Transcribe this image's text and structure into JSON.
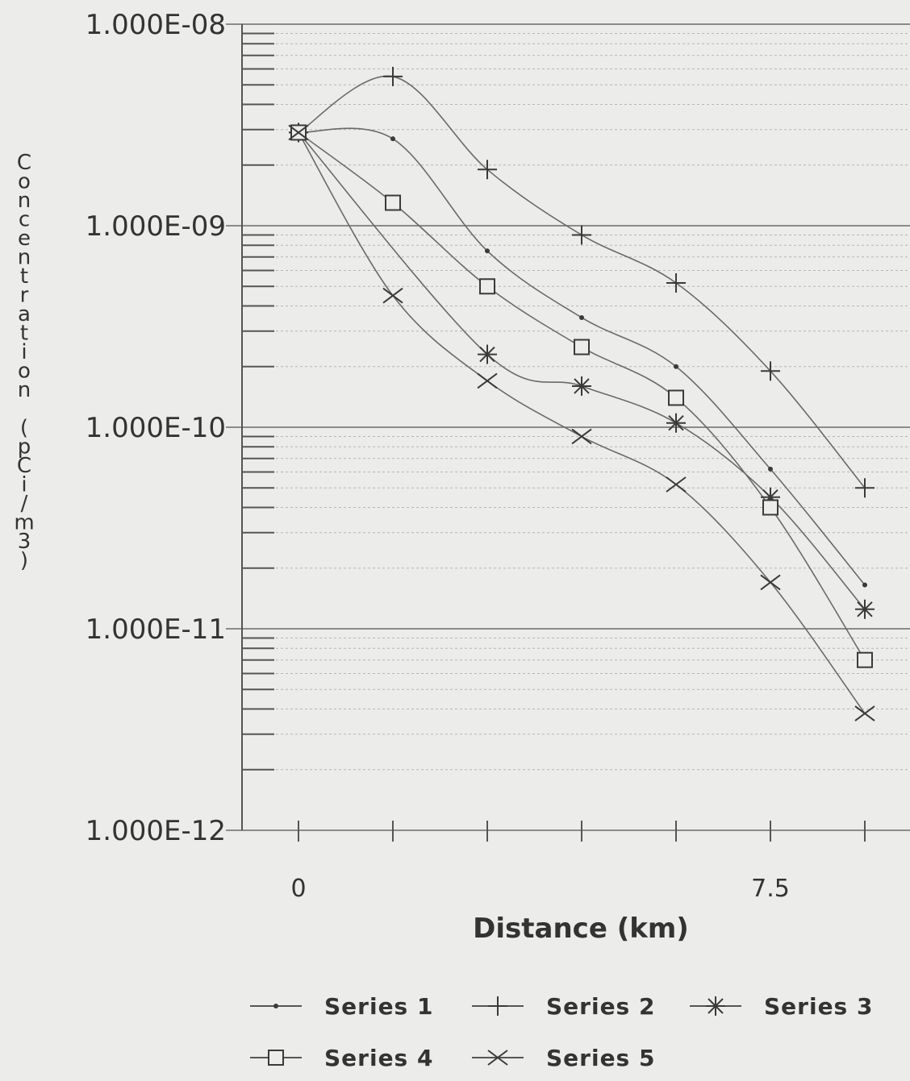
{
  "chart_data": {
    "type": "line",
    "title": "",
    "xlabel": "Distance (km)",
    "ylabel": "Concentration (pCi/m3)",
    "xlim": [
      0,
      9
    ],
    "ylim": [
      1e-12,
      1e-08
    ],
    "yscale": "log",
    "grid": true,
    "x_tick_labels": [
      {
        "value": 0,
        "label": "0"
      },
      {
        "value": 7.5,
        "label": "7.5"
      }
    ],
    "y_tick_labels": [
      {
        "value": 1e-08,
        "label": "1.000E-08"
      },
      {
        "value": 1e-09,
        "label": "1.000E-09"
      },
      {
        "value": 1e-10,
        "label": "1.000E-10"
      },
      {
        "value": 1e-11,
        "label": "1.000E-11"
      },
      {
        "value": 1e-12,
        "label": "1.000E-12"
      }
    ],
    "legend_position": "bottom",
    "x": [
      0,
      1.5,
      3,
      4.5,
      6,
      7.5,
      9
    ],
    "series": [
      {
        "name": "Series 1",
        "marker": "dot",
        "values": [
          2.9e-09,
          2.7e-09,
          7.5e-10,
          3.5e-10,
          2e-10,
          6.2e-11,
          1.65e-11
        ]
      },
      {
        "name": "Series 2",
        "marker": "plus",
        "values": [
          2.9e-09,
          5.5e-09,
          1.9e-09,
          9e-10,
          5.2e-10,
          1.9e-10,
          5e-11
        ]
      },
      {
        "name": "Series 3",
        "marker": "star",
        "values": [
          2.9e-09,
          null,
          2.3e-10,
          1.6e-10,
          1.05e-10,
          4.5e-11,
          1.25e-11
        ]
      },
      {
        "name": "Series 4",
        "marker": "square",
        "values": [
          2.9e-09,
          1.3e-09,
          5e-10,
          2.5e-10,
          1.4e-10,
          4e-11,
          7e-12
        ]
      },
      {
        "name": "Series 5",
        "marker": "x",
        "values": [
          2.9e-09,
          4.5e-10,
          1.7e-10,
          9e-11,
          5.2e-11,
          1.7e-11,
          3.8e-12
        ]
      }
    ]
  }
}
